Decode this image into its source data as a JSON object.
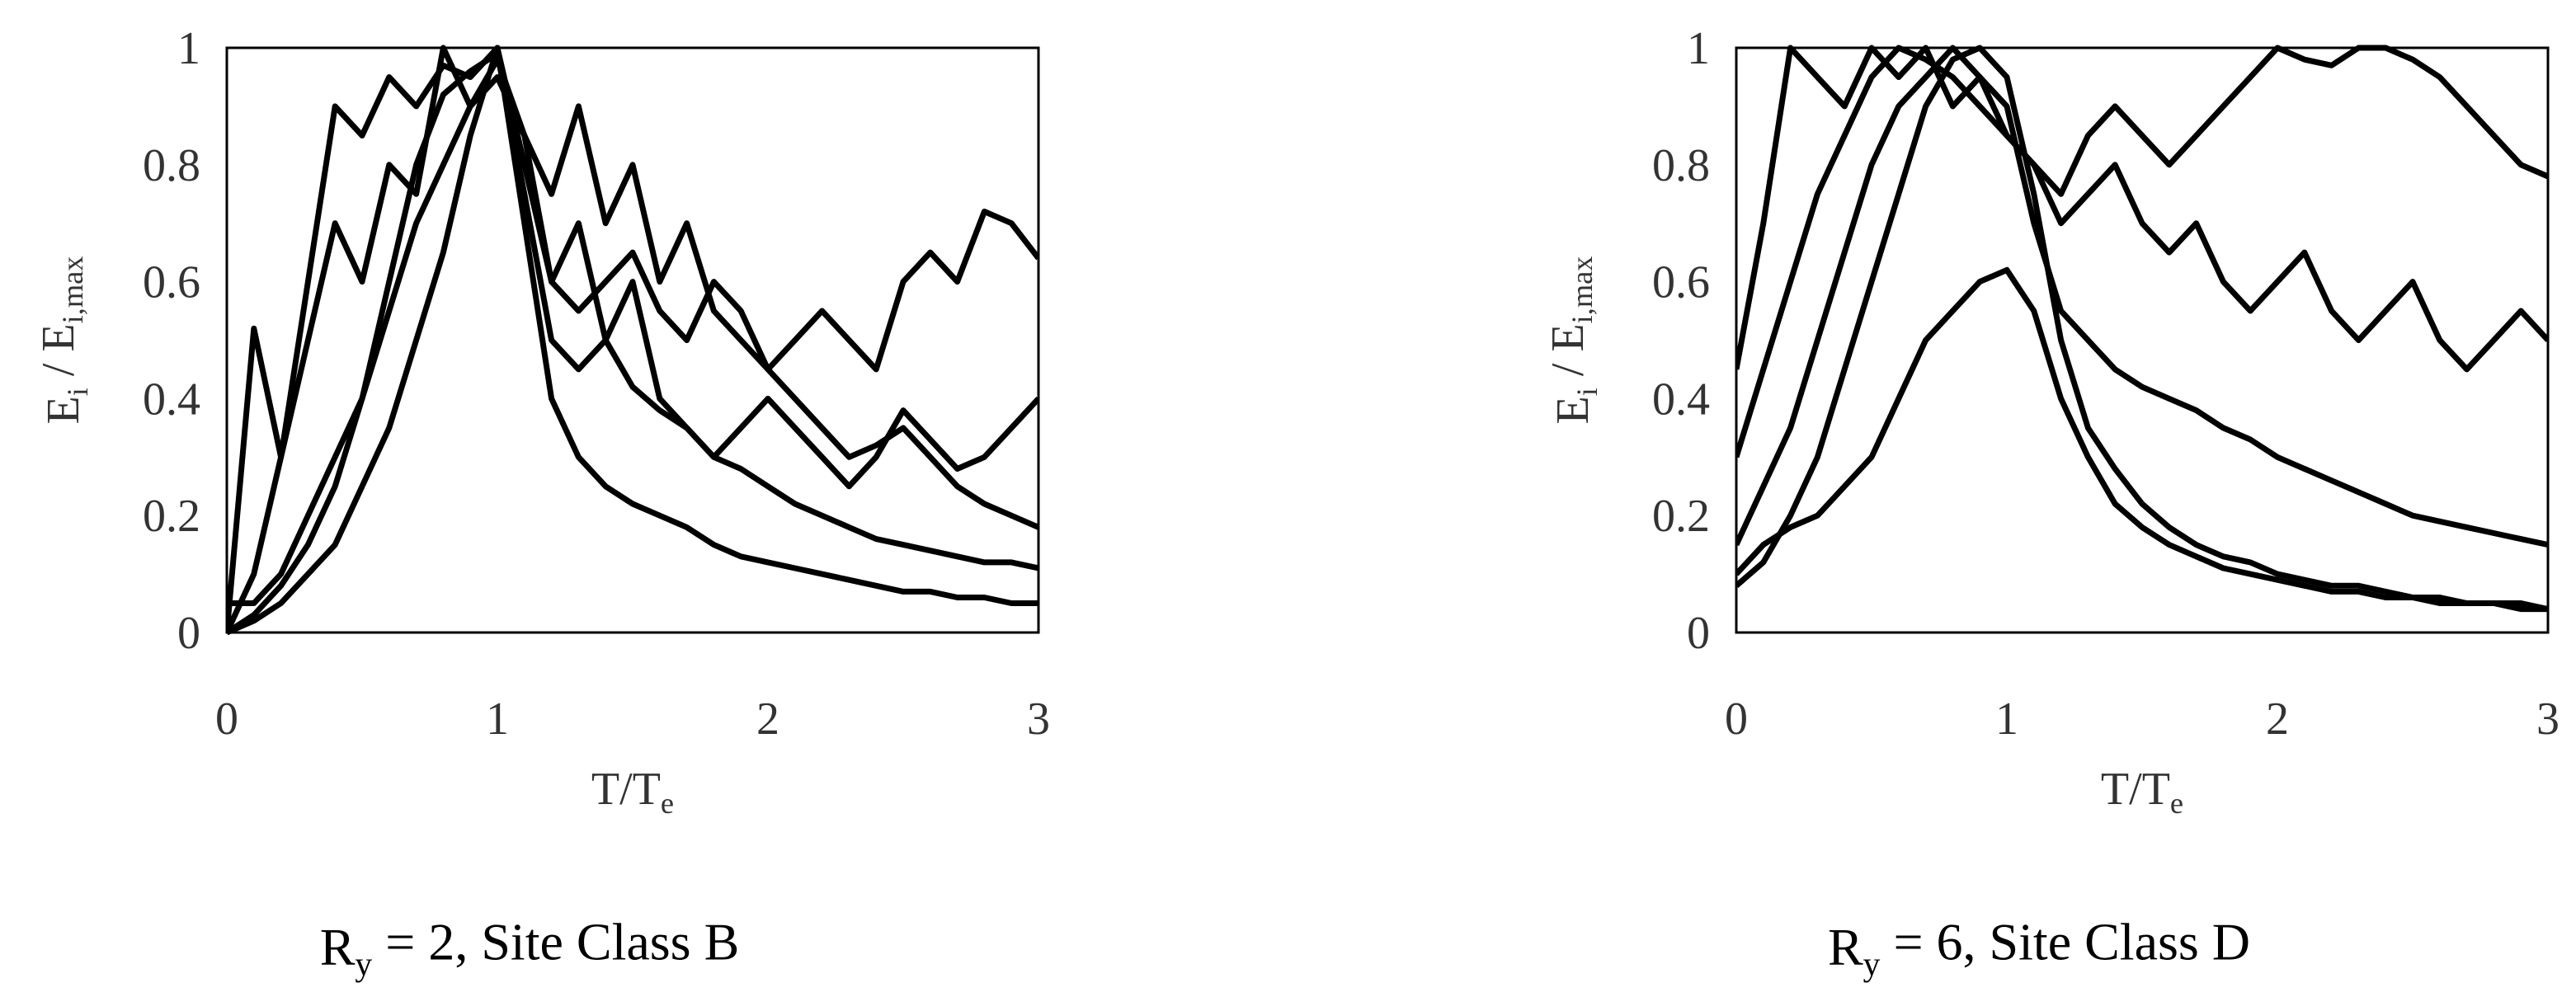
{
  "chart_data": [
    {
      "type": "line",
      "ylabel": [
        "E",
        "i",
        " / E",
        "i,max"
      ],
      "xlabel": [
        "T/T",
        "e"
      ],
      "caption": [
        "R",
        "y",
        " = 2, Site Class B"
      ],
      "x": [
        0,
        0.1,
        0.2,
        0.3,
        0.4,
        0.5,
        0.6,
        0.7,
        0.8,
        0.9,
        1,
        1.1,
        1.2,
        1.3,
        1.4,
        1.5,
        1.6,
        1.7,
        1.8,
        1.9,
        2,
        2.1,
        2.2,
        2.3,
        2.4,
        2.5,
        2.6,
        2.7,
        2.8,
        2.9,
        3
      ],
      "xlim": [
        0,
        3
      ],
      "ylim": [
        0,
        1
      ],
      "xticks": [
        0,
        1,
        2,
        3
      ],
      "yticks": [
        0,
        0.2,
        0.4,
        0.6,
        0.8,
        1
      ],
      "grid": false,
      "series": [
        {
          "color": "#000000",
          "values": [
            0,
            0.02,
            0.05,
            0.1,
            0.15,
            0.25,
            0.35,
            0.5,
            0.65,
            0.85,
            1,
            0.7,
            0.4,
            0.3,
            0.25,
            0.22,
            0.2,
            0.18,
            0.15,
            0.13,
            0.12,
            0.11,
            0.1,
            0.09,
            0.08,
            0.07,
            0.07,
            0.06,
            0.06,
            0.05,
            0.05
          ]
        },
        {
          "color": "#000000",
          "values": [
            0,
            0.1,
            0.3,
            0.6,
            0.9,
            0.85,
            0.95,
            0.9,
            0.97,
            0.95,
            1,
            0.8,
            0.6,
            0.7,
            0.5,
            0.6,
            0.4,
            0.35,
            0.3,
            0.28,
            0.25,
            0.22,
            0.2,
            0.18,
            0.16,
            0.15,
            0.14,
            0.13,
            0.12,
            0.12,
            0.11
          ]
        },
        {
          "color": "#000000",
          "values": [
            0,
            0.52,
            0.3,
            0.5,
            0.7,
            0.6,
            0.8,
            0.75,
            1,
            0.9,
            0.95,
            0.85,
            0.75,
            0.9,
            0.7,
            0.8,
            0.6,
            0.7,
            0.55,
            0.5,
            0.45,
            0.4,
            0.35,
            0.3,
            0.32,
            0.35,
            0.3,
            0.25,
            0.22,
            0.2,
            0.18
          ]
        },
        {
          "color": "#000000",
          "values": [
            0.05,
            0.05,
            0.1,
            0.2,
            0.3,
            0.4,
            0.55,
            0.7,
            0.8,
            0.9,
            0.98,
            0.85,
            0.6,
            0.55,
            0.6,
            0.65,
            0.55,
            0.5,
            0.6,
            0.55,
            0.45,
            0.5,
            0.55,
            0.5,
            0.45,
            0.6,
            0.65,
            0.6,
            0.72,
            0.7,
            0.64
          ]
        },
        {
          "color": "#000000",
          "values": [
            0,
            0.03,
            0.08,
            0.15,
            0.25,
            0.4,
            0.6,
            0.8,
            0.92,
            0.96,
            0.99,
            0.75,
            0.5,
            0.45,
            0.5,
            0.42,
            0.38,
            0.35,
            0.3,
            0.35,
            0.4,
            0.35,
            0.3,
            0.25,
            0.3,
            0.38,
            0.33,
            0.28,
            0.3,
            0.35,
            0.4
          ]
        }
      ]
    },
    {
      "type": "line",
      "ylabel": [
        "E",
        "i",
        " / E",
        "i,max"
      ],
      "xlabel": [
        "T/T",
        "e"
      ],
      "caption": [
        "R",
        "y",
        " = 6, Site Class D"
      ],
      "x": [
        0,
        0.1,
        0.2,
        0.3,
        0.4,
        0.5,
        0.6,
        0.7,
        0.8,
        0.9,
        1,
        1.1,
        1.2,
        1.3,
        1.4,
        1.5,
        1.6,
        1.7,
        1.8,
        1.9,
        2,
        2.1,
        2.2,
        2.3,
        2.4,
        2.5,
        2.6,
        2.7,
        2.8,
        2.9,
        3
      ],
      "xlim": [
        0,
        3
      ],
      "ylim": [
        0,
        1
      ],
      "xticks": [
        0,
        1,
        2,
        3
      ],
      "yticks": [
        0,
        0.2,
        0.4,
        0.6,
        0.8,
        1
      ],
      "grid": false,
      "series": [
        {
          "color": "#000000",
          "values": [
            0.1,
            0.15,
            0.18,
            0.2,
            0.25,
            0.3,
            0.4,
            0.5,
            0.55,
            0.6,
            0.62,
            0.55,
            0.4,
            0.3,
            0.22,
            0.18,
            0.15,
            0.13,
            0.11,
            0.1,
            0.09,
            0.08,
            0.07,
            0.07,
            0.06,
            0.06,
            0.05,
            0.05,
            0.05,
            0.04,
            0.04
          ]
        },
        {
          "color": "#000000",
          "values": [
            0.45,
            0.7,
            1,
            0.95,
            0.9,
            1,
            0.95,
            1,
            0.9,
            0.95,
            0.85,
            0.8,
            0.75,
            0.85,
            0.9,
            0.85,
            0.8,
            0.85,
            0.9,
            0.95,
            1,
            0.98,
            0.97,
            1,
            1,
            0.98,
            0.95,
            0.9,
            0.85,
            0.8,
            0.78
          ]
        },
        {
          "color": "#000000",
          "values": [
            0.08,
            0.12,
            0.2,
            0.3,
            0.45,
            0.6,
            0.75,
            0.9,
            0.98,
            1,
            0.95,
            0.75,
            0.5,
            0.35,
            0.28,
            0.22,
            0.18,
            0.15,
            0.13,
            0.12,
            0.1,
            0.09,
            0.08,
            0.08,
            0.07,
            0.06,
            0.06,
            0.05,
            0.05,
            0.05,
            0.04
          ]
        },
        {
          "color": "#000000",
          "values": [
            0.3,
            0.45,
            0.6,
            0.75,
            0.85,
            0.95,
            1,
            0.98,
            0.95,
            0.9,
            0.85,
            0.8,
            0.7,
            0.75,
            0.8,
            0.7,
            0.65,
            0.7,
            0.6,
            0.55,
            0.6,
            0.65,
            0.55,
            0.5,
            0.55,
            0.6,
            0.5,
            0.45,
            0.5,
            0.55,
            0.5
          ]
        },
        {
          "color": "#000000",
          "values": [
            0.15,
            0.25,
            0.35,
            0.5,
            0.65,
            0.8,
            0.9,
            0.95,
            1,
            0.95,
            0.9,
            0.7,
            0.55,
            0.5,
            0.45,
            0.42,
            0.4,
            0.38,
            0.35,
            0.33,
            0.3,
            0.28,
            0.26,
            0.24,
            0.22,
            0.2,
            0.19,
            0.18,
            0.17,
            0.16,
            0.15
          ]
        }
      ]
    }
  ]
}
